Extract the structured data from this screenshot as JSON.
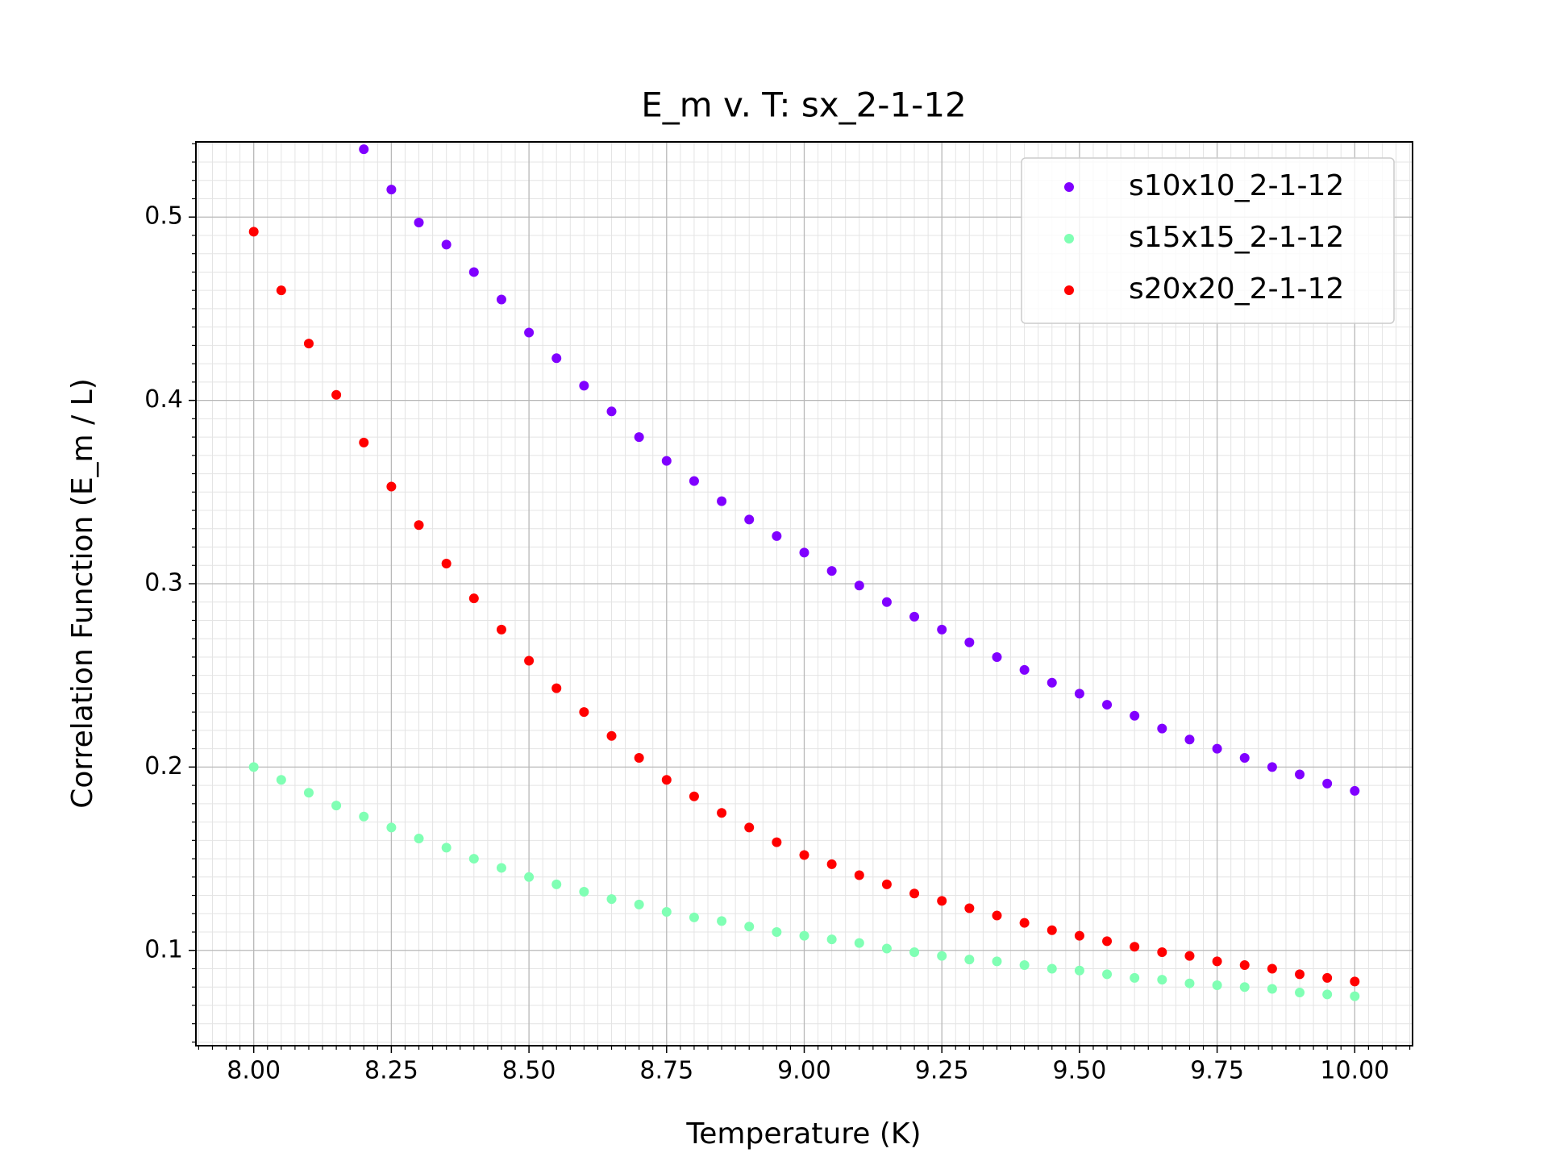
{
  "chart_data": {
    "type": "scatter",
    "title": "E_m v. T: sx_2-1-12",
    "x_label": "Temperature (K)",
    "y_label": "Correlation Function (E_m / L)",
    "xlim": [
      7.895,
      10.105
    ],
    "ylim": [
      0.048,
      0.541
    ],
    "xticks": [
      {
        "value": 8,
        "label": "8.00"
      },
      {
        "value": 8.25,
        "label": "8.25"
      },
      {
        "value": 8.5,
        "label": "8.50"
      },
      {
        "value": 8.75,
        "label": "8.75"
      },
      {
        "value": 9,
        "label": "9.00"
      },
      {
        "value": 9.25,
        "label": "9.25"
      },
      {
        "value": 9.5,
        "label": "9.50"
      },
      {
        "value": 9.75,
        "label": "9.75"
      },
      {
        "value": 10,
        "label": "10.00"
      }
    ],
    "yticks": [
      0.1,
      0.2,
      0.3,
      0.4,
      0.5
    ],
    "grid": true,
    "minor_grid": true,
    "x_minor_divisions": 10,
    "y_minor_divisions": 10,
    "legend": "upper right",
    "series": [
      {
        "name": "s10x10_2-1-12",
        "color": "#8000ff",
        "x": [
          8.2,
          8.25,
          8.3,
          8.35,
          8.4,
          8.45,
          8.5,
          8.55,
          8.6,
          8.65,
          8.7,
          8.75,
          8.8,
          8.85,
          8.9,
          8.95,
          9.0,
          9.05,
          9.1,
          9.15,
          9.2,
          9.25,
          9.3,
          9.35,
          9.4,
          9.45,
          9.5,
          9.55,
          9.6,
          9.65,
          9.7,
          9.75,
          9.8,
          9.85,
          9.9,
          9.95,
          10.0
        ],
        "values": [
          0.537,
          0.515,
          0.497,
          0.485,
          0.47,
          0.455,
          0.437,
          0.423,
          0.408,
          0.394,
          0.38,
          0.367,
          0.356,
          0.345,
          0.335,
          0.326,
          0.317,
          0.307,
          0.299,
          0.29,
          0.282,
          0.275,
          0.268,
          0.26,
          0.253,
          0.246,
          0.24,
          0.234,
          0.228,
          0.221,
          0.215,
          0.21,
          0.205,
          0.2,
          0.196,
          0.191,
          0.187
        ]
      },
      {
        "name": "s15x15_2-1-12",
        "color": "#80ffb4",
        "x": [
          8.0,
          8.05,
          8.1,
          8.15,
          8.2,
          8.25,
          8.3,
          8.35,
          8.4,
          8.45,
          8.5,
          8.55,
          8.6,
          8.65,
          8.7,
          8.75,
          8.8,
          8.85,
          8.9,
          8.95,
          9.0,
          9.05,
          9.1,
          9.15,
          9.2,
          9.25,
          9.3,
          9.35,
          9.4,
          9.45,
          9.5,
          9.55,
          9.6,
          9.65,
          9.7,
          9.75,
          9.8,
          9.85,
          9.9,
          9.95,
          10.0
        ],
        "values": [
          0.2,
          0.193,
          0.186,
          0.179,
          0.173,
          0.167,
          0.161,
          0.156,
          0.15,
          0.145,
          0.14,
          0.136,
          0.132,
          0.128,
          0.125,
          0.121,
          0.118,
          0.116,
          0.113,
          0.11,
          0.108,
          0.106,
          0.104,
          0.101,
          0.099,
          0.097,
          0.095,
          0.094,
          0.092,
          0.09,
          0.089,
          0.087,
          0.085,
          0.084,
          0.082,
          0.081,
          0.08,
          0.079,
          0.077,
          0.076,
          0.075
        ]
      },
      {
        "name": "s20x20_2-1-12",
        "color": "#ff0000",
        "x": [
          8.0,
          8.05,
          8.1,
          8.15,
          8.2,
          8.25,
          8.3,
          8.35,
          8.4,
          8.45,
          8.5,
          8.55,
          8.6,
          8.65,
          8.7,
          8.75,
          8.8,
          8.85,
          8.9,
          8.95,
          9.0,
          9.05,
          9.1,
          9.15,
          9.2,
          9.25,
          9.3,
          9.35,
          9.4,
          9.45,
          9.5,
          9.55,
          9.6,
          9.65,
          9.7,
          9.75,
          9.8,
          9.85,
          9.9,
          9.95,
          10.0
        ],
        "values": [
          0.492,
          0.46,
          0.431,
          0.403,
          0.377,
          0.353,
          0.332,
          0.311,
          0.292,
          0.275,
          0.258,
          0.243,
          0.23,
          0.217,
          0.205,
          0.193,
          0.184,
          0.175,
          0.167,
          0.159,
          0.152,
          0.147,
          0.141,
          0.136,
          0.131,
          0.127,
          0.123,
          0.119,
          0.115,
          0.111,
          0.108,
          0.105,
          0.102,
          0.099,
          0.097,
          0.094,
          0.092,
          0.09,
          0.087,
          0.085,
          0.083
        ]
      }
    ]
  }
}
